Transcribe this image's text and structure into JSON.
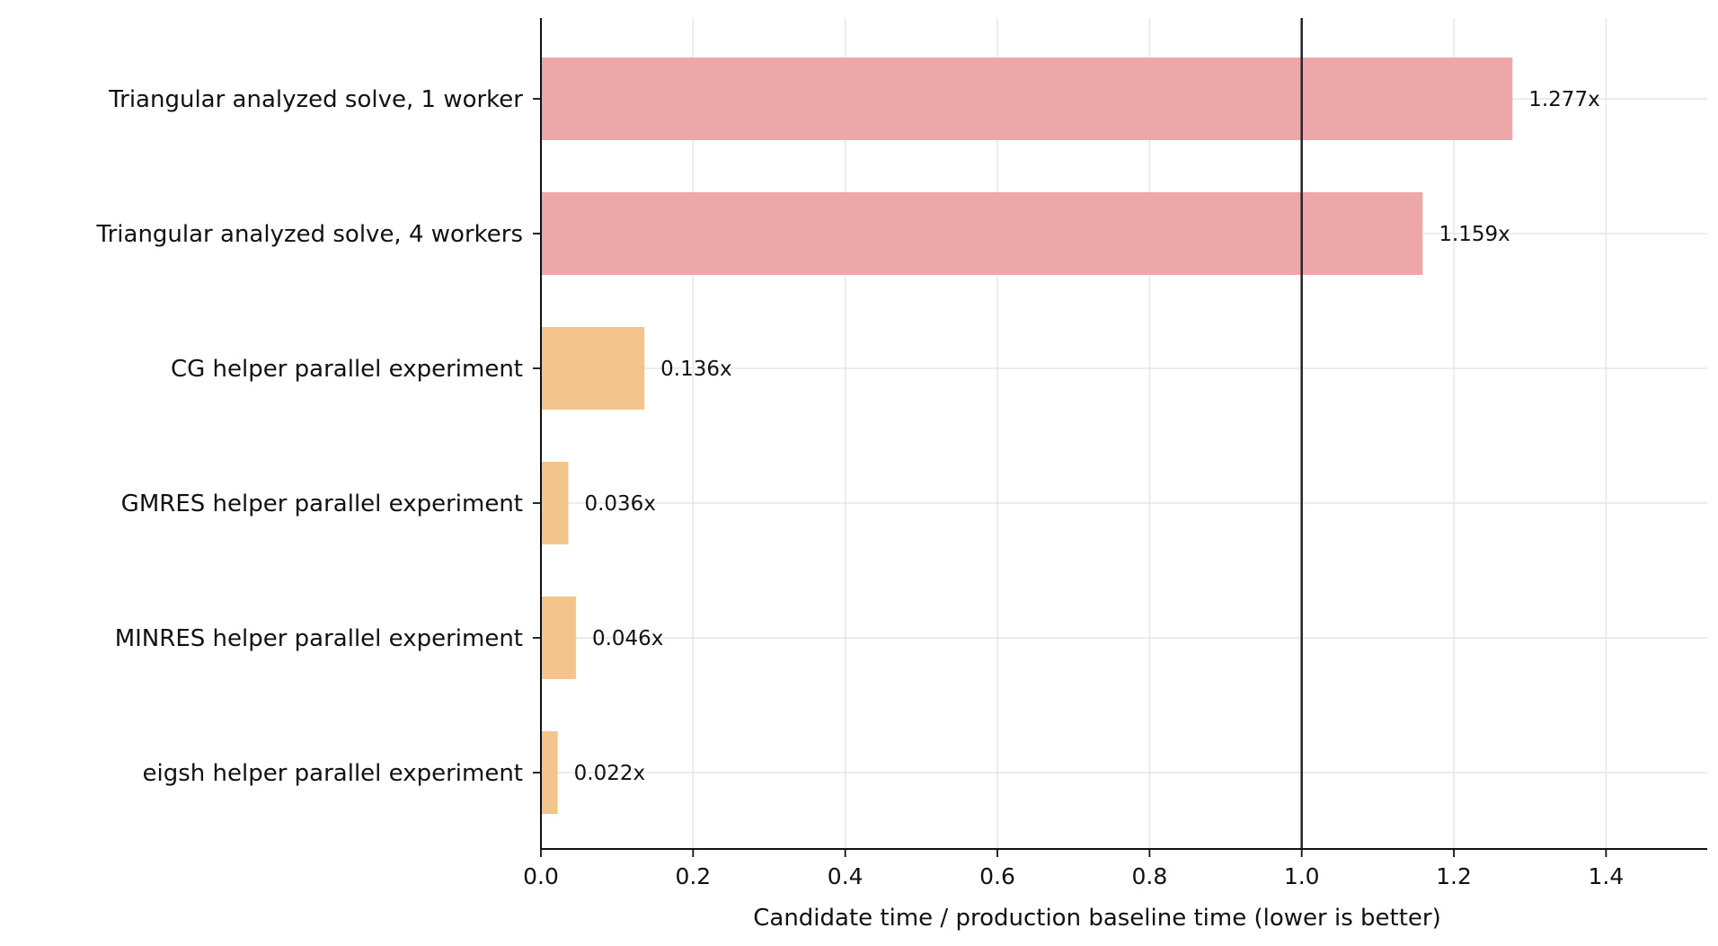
{
  "chart_data": {
    "type": "bar",
    "orientation": "horizontal",
    "title": "",
    "xlabel": "Candidate time / production baseline time (lower is better)",
    "ylabel": "",
    "categories": [
      "Triangular analyzed solve, 1 worker",
      "Triangular analyzed solve, 4 workers",
      "CG helper parallel experiment",
      "GMRES helper parallel experiment",
      "MINRES helper parallel experiment",
      "eigsh helper parallel experiment"
    ],
    "values": [
      1.277,
      1.159,
      0.136,
      0.036,
      0.046,
      0.022
    ],
    "data_labels": [
      "1.277x",
      "1.159x",
      "0.136x",
      "0.036x",
      "0.046x",
      "0.022x"
    ],
    "bar_colors": [
      "#eea7a9",
      "#eea7a9",
      "#f3c48c",
      "#f3c48c",
      "#f3c48c",
      "#f3c48c"
    ],
    "xlim": [
      0,
      1.533
    ],
    "xticks": [
      0.0,
      0.2,
      0.4,
      0.6,
      0.8,
      1.0,
      1.2,
      1.4
    ],
    "xtick_labels": [
      "0.0",
      "0.2",
      "0.4",
      "0.6",
      "0.8",
      "1.0",
      "1.2",
      "1.4"
    ],
    "reference_line": 1.0,
    "reference_line_color": "#1f2630",
    "grid": true,
    "grid_color": "#e6e6e6",
    "legend": "none"
  }
}
